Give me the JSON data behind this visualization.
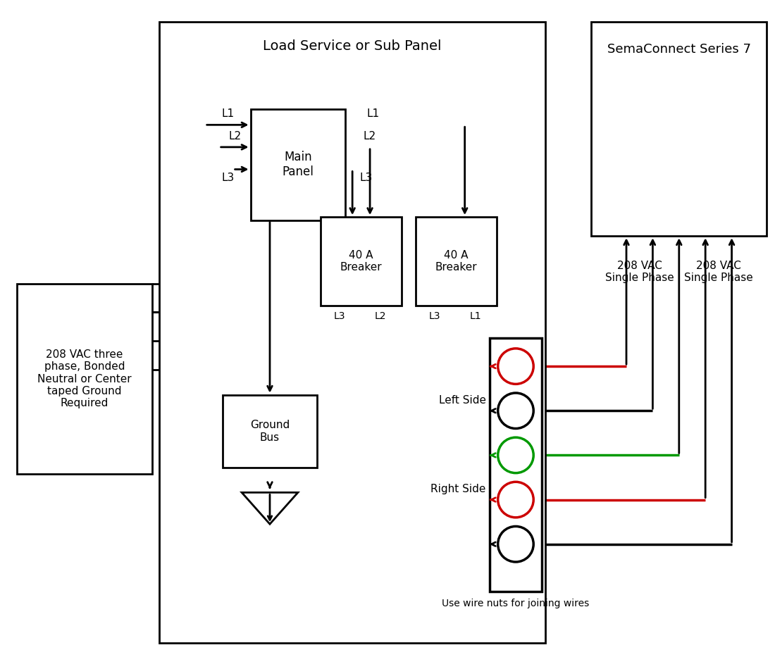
{
  "bg_color": "#ffffff",
  "line_color": "#000000",
  "red_color": "#cc0000",
  "green_color": "#009900",
  "title": "Load Service or Sub Panel",
  "sema_title": "SemaConnect Series 7",
  "vac_box_text": "208 VAC three\nphase, Bonded\nNeutral or Center\ntaped Ground\nRequired",
  "ground_bus_text": "Ground\nBus",
  "left_breaker_text": "40 A\nBreaker",
  "right_breaker_text": "40 A\nBreaker",
  "left_side_text": "Left Side",
  "right_side_text": "Right Side",
  "wire_nuts_text": "Use wire nuts for joining wires",
  "vac_label1": "208 VAC\nSingle Phase",
  "vac_label2": "208 VAC\nSingle Phase",
  "main_panel_text": "Main\nPanel"
}
